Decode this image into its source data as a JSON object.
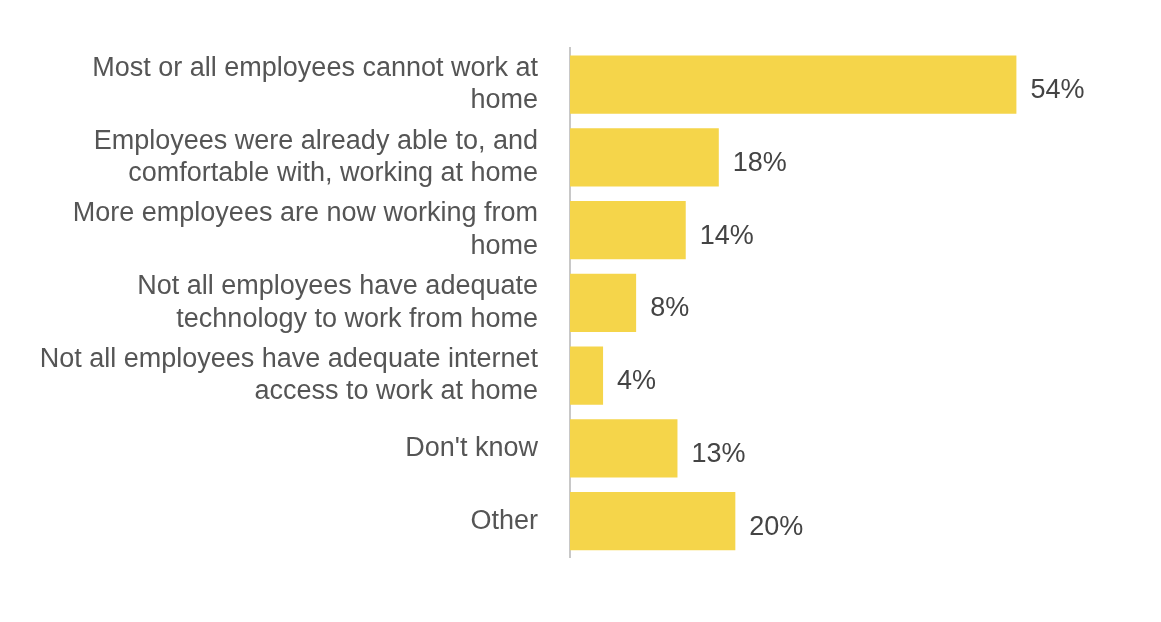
{
  "chart_data": {
    "type": "bar",
    "orientation": "horizontal",
    "categories": [
      "Most or all employees cannot work at home",
      "Employees were already able to, and comfortable with, working at home",
      "More employees are now working from home",
      "Not all employees have adequate technology to work from home",
      "Not all employees have adequate internet access to work at home",
      "Don't know",
      "Other"
    ],
    "values": [
      54,
      18,
      14,
      8,
      4,
      13,
      20
    ],
    "value_labels": [
      "54%",
      "18%",
      "14%",
      "8%",
      "4%",
      "13%",
      "20%"
    ],
    "color": "#f5d54a",
    "legend": false
  }
}
